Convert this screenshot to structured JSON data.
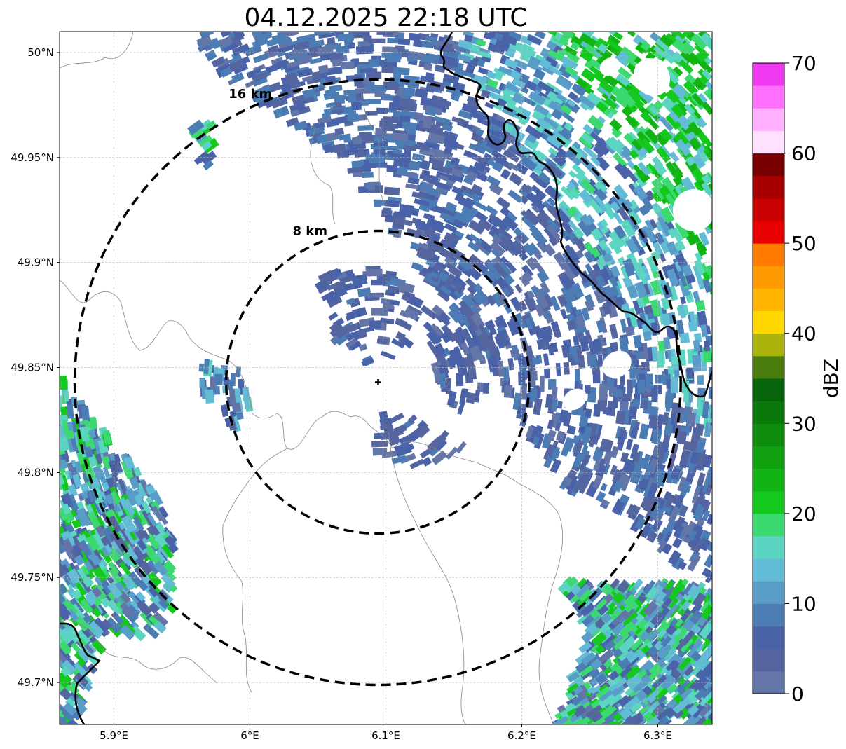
{
  "title": "04.12.2025 22:18 UTC",
  "map": {
    "lon_range": [
      5.86,
      6.34
    ],
    "lat_range": [
      49.68,
      50.01
    ],
    "lon_ticks": [
      {
        "value": 5.9,
        "label": "5.9°E"
      },
      {
        "value": 6.0,
        "label": "6°E"
      },
      {
        "value": 6.1,
        "label": "6.1°E"
      },
      {
        "value": 6.2,
        "label": "6.2°E"
      },
      {
        "value": 6.3,
        "label": "6.3°E"
      }
    ],
    "lat_ticks": [
      {
        "value": 50.0,
        "label": "50°N"
      },
      {
        "value": 49.95,
        "label": "49.95°N"
      },
      {
        "value": 49.9,
        "label": "49.9°N"
      },
      {
        "value": 49.85,
        "label": "49.85°N"
      },
      {
        "value": 49.8,
        "label": "49.8°N"
      },
      {
        "value": 49.75,
        "label": "49.75°N"
      },
      {
        "value": 49.7,
        "label": "49.7°N"
      }
    ],
    "gridlines": true,
    "radar_site": {
      "lon": 6.094,
      "lat": 49.843
    },
    "range_rings": [
      {
        "radius_km": 8,
        "label": "8 km"
      },
      {
        "radius_km": 16,
        "label": "16 km"
      }
    ],
    "echo_bands": [
      {
        "name": "northeast rain band",
        "dbz_range": [
          0,
          25
        ]
      },
      {
        "name": "southwest rain band",
        "dbz_range": [
          0,
          22
        ]
      },
      {
        "name": "southeast rain band",
        "dbz_range": [
          0,
          22
        ]
      },
      {
        "name": "central light echoes",
        "dbz_range": [
          0,
          8
        ]
      }
    ]
  },
  "colorbar": {
    "label": "dBZ",
    "ticks": [
      "0",
      "10",
      "20",
      "30",
      "40",
      "50",
      "60",
      "70"
    ],
    "min": 0,
    "max": 70,
    "step": 2.5,
    "colors": [
      "#6476a8",
      "#5565a0",
      "#4a62a8",
      "#4c7cb4",
      "#5a9cc8",
      "#62bcd6",
      "#5cd4c2",
      "#3cd870",
      "#14c81e",
      "#12b414",
      "#10a010",
      "#0e8c0e",
      "#0a780a",
      "#06640a",
      "#4a7c0e",
      "#aab40c",
      "#ffd800",
      "#ffb400",
      "#ff9a00",
      "#ff7c00",
      "#e80000",
      "#c80000",
      "#a80000",
      "#780000",
      "#ffe0ff",
      "#ffb0ff",
      "#ff70ff",
      "#f038f0"
    ]
  }
}
